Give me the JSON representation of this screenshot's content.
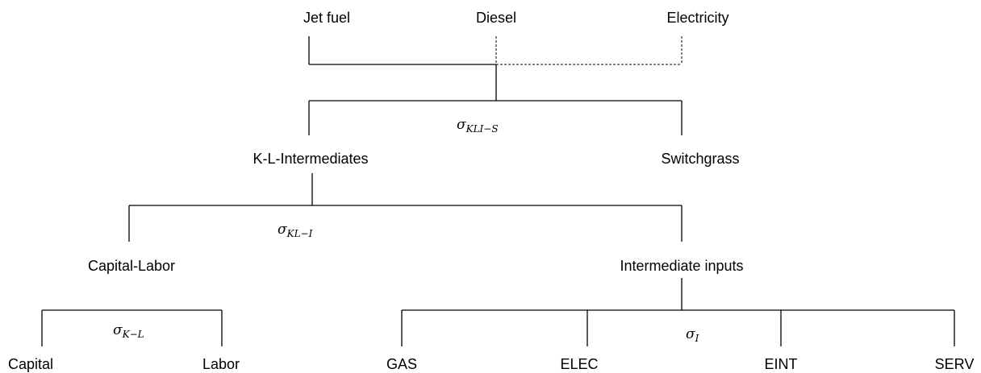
{
  "nodes": [
    {
      "label": "Jet fuel"
    },
    {
      "label": "Diesel"
    },
    {
      "label": "Electricity"
    },
    {
      "label": "K-L-Intermediates"
    },
    {
      "label": "Switchgrass"
    },
    {
      "label": "Capital-Labor"
    },
    {
      "label": "Intermediate inputs"
    },
    {
      "label": "Capital"
    },
    {
      "label": "Labor"
    },
    {
      "label": "GAS"
    },
    {
      "label": "ELEC"
    },
    {
      "label": "EINT"
    },
    {
      "label": "SERV"
    }
  ],
  "elasticities": [
    {
      "symbol": "σ",
      "subscript": "KLI−S"
    },
    {
      "symbol": "σ",
      "subscript": "KL−I"
    },
    {
      "symbol": "σ",
      "subscript": "K−L"
    },
    {
      "symbol": "σ",
      "subscript": "I"
    }
  ]
}
